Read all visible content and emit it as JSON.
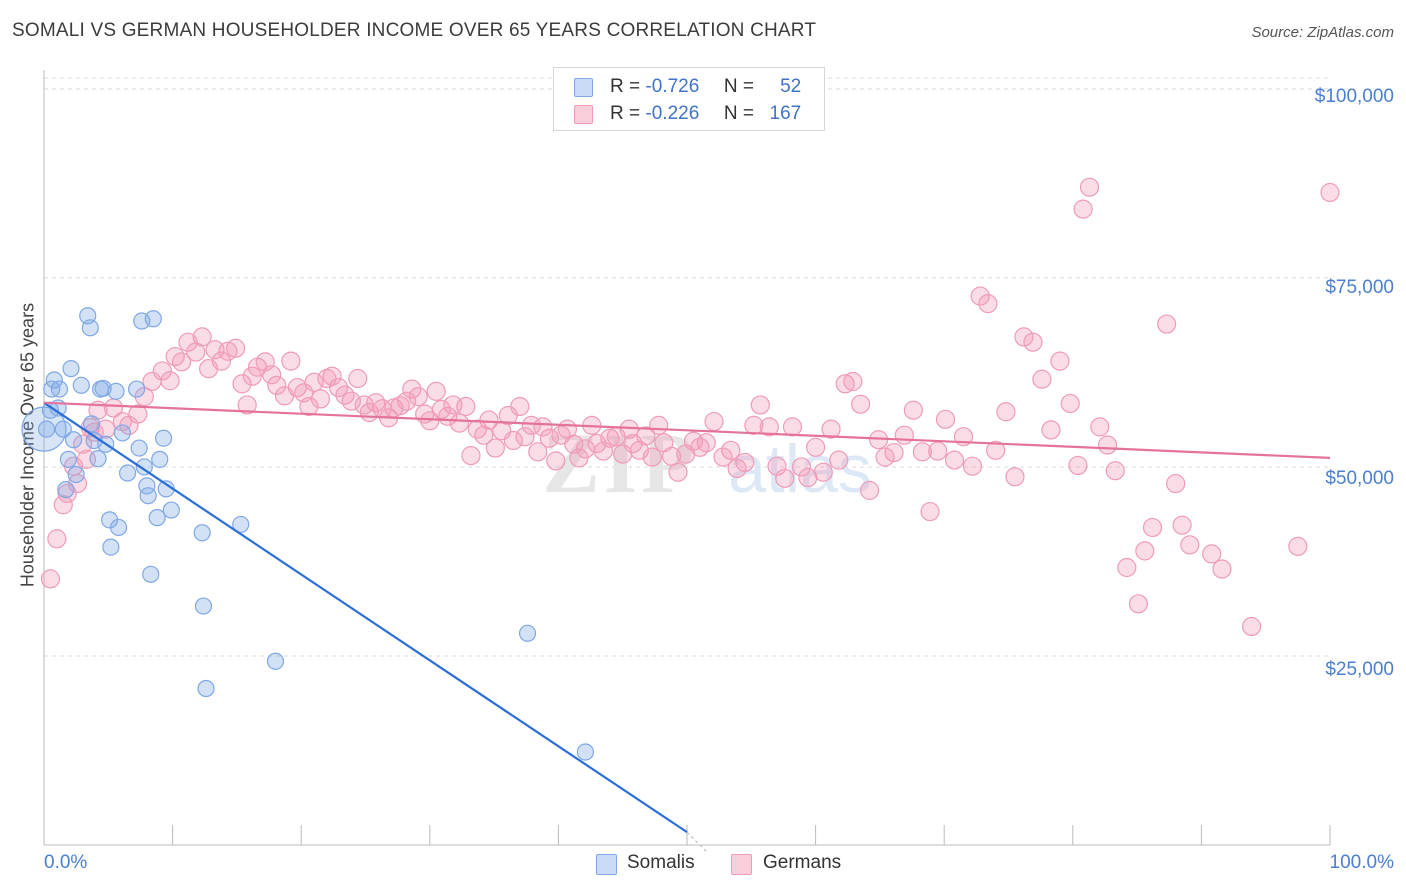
{
  "title": "SOMALI VS GERMAN HOUSEHOLDER INCOME OVER 65 YEARS CORRELATION CHART",
  "source": "Source: ZipAtlas.com",
  "watermark": "ZIPatlas",
  "colors": {
    "somali": "#7fa8e6",
    "somali_line": "#2a6fd6",
    "german": "#f09bb7",
    "german_line": "#e4729a",
    "tick_text": "#4a7fd0",
    "grid": "#d8d8d8"
  },
  "legend": {
    "r_label": "R =",
    "n_label": "N =",
    "somali": {
      "r": "-0.726",
      "n": "52"
    },
    "german": {
      "r": "-0.226",
      "n": "167"
    }
  },
  "bottom_legend": {
    "somali": "Somalis",
    "german": "Germans"
  },
  "chart_data": {
    "type": "scatter",
    "title": "SOMALI VS GERMAN HOUSEHOLDER INCOME OVER 65 YEARS CORRELATION CHART",
    "xlabel": "",
    "ylabel": "Householder Income Over 65 years",
    "xlim": [
      0,
      100
    ],
    "ylim": [
      0,
      102500
    ],
    "x_tick_labels": [
      "0.0%",
      "100.0%"
    ],
    "y_ticks": [
      25000,
      50000,
      75000,
      100000
    ],
    "y_tick_labels": [
      "$25,000",
      "$50,000",
      "$75,000",
      "$100,000"
    ],
    "grid": true,
    "series": [
      {
        "name": "Somalis",
        "trend": {
          "x0": 0,
          "y0": 58500,
          "x1": 50,
          "y1": 1700
        },
        "points": [
          [
            0.2,
            55000
          ],
          [
            0.5,
            57500
          ],
          [
            0.6,
            60300
          ],
          [
            0.8,
            61500
          ],
          [
            1.1,
            57800
          ],
          [
            1.2,
            60300
          ],
          [
            1.5,
            55000
          ],
          [
            1.7,
            47000
          ],
          [
            1.9,
            51000
          ],
          [
            2.1,
            63000
          ],
          [
            2.3,
            53600
          ],
          [
            2.5,
            49000
          ],
          [
            2.9,
            60800
          ],
          [
            3.4,
            70000
          ],
          [
            3.6,
            68400
          ],
          [
            3.7,
            55700
          ],
          [
            3.9,
            53500
          ],
          [
            4.2,
            51100
          ],
          [
            4.4,
            60300
          ],
          [
            4.6,
            60400
          ],
          [
            4.8,
            53000
          ],
          [
            5.1,
            43000
          ],
          [
            5.2,
            39400
          ],
          [
            5.6,
            60000
          ],
          [
            5.8,
            42000
          ],
          [
            6.1,
            54500
          ],
          [
            6.5,
            49200
          ],
          [
            7.2,
            60300
          ],
          [
            7.4,
            52500
          ],
          [
            7.6,
            69300
          ],
          [
            7.8,
            50000
          ],
          [
            8.0,
            47500
          ],
          [
            8.1,
            46200
          ],
          [
            8.3,
            35800
          ],
          [
            8.5,
            69600
          ],
          [
            8.8,
            43300
          ],
          [
            9.0,
            51000
          ],
          [
            9.3,
            53800
          ],
          [
            9.5,
            47100
          ],
          [
            9.9,
            44300
          ],
          [
            12.3,
            41300
          ],
          [
            12.4,
            31600
          ],
          [
            12.6,
            20700
          ],
          [
            15.3,
            42400
          ],
          [
            18.0,
            24300
          ],
          [
            37.6,
            28000
          ],
          [
            42.1,
            12300
          ]
        ]
      },
      {
        "name": "Germans",
        "trend": {
          "x0": 0,
          "y0": 58500,
          "x1": 100,
          "y1": 51200
        },
        "points": [
          [
            0.5,
            35200
          ],
          [
            1.0,
            40500
          ],
          [
            1.5,
            45000
          ],
          [
            1.8,
            46500
          ],
          [
            2.3,
            50100
          ],
          [
            2.6,
            47800
          ],
          [
            3.0,
            53000
          ],
          [
            3.3,
            51000
          ],
          [
            3.6,
            55200
          ],
          [
            3.9,
            54600
          ],
          [
            4.2,
            57500
          ],
          [
            4.8,
            55000
          ],
          [
            5.4,
            57800
          ],
          [
            6.1,
            56000
          ],
          [
            6.6,
            55500
          ],
          [
            7.3,
            57000
          ],
          [
            7.8,
            59300
          ],
          [
            8.4,
            61300
          ],
          [
            9.2,
            62700
          ],
          [
            9.8,
            61400
          ],
          [
            10.2,
            64600
          ],
          [
            10.7,
            63900
          ],
          [
            11.2,
            66500
          ],
          [
            11.8,
            65200
          ],
          [
            12.3,
            67200
          ],
          [
            12.8,
            63000
          ],
          [
            13.3,
            65500
          ],
          [
            13.8,
            64000
          ],
          [
            14.3,
            65300
          ],
          [
            14.9,
            65700
          ],
          [
            15.4,
            61000
          ],
          [
            15.8,
            58200
          ],
          [
            16.2,
            62000
          ],
          [
            16.6,
            63200
          ],
          [
            17.2,
            63900
          ],
          [
            17.7,
            62200
          ],
          [
            18.1,
            60800
          ],
          [
            18.7,
            59400
          ],
          [
            19.2,
            64000
          ],
          [
            19.7,
            60500
          ],
          [
            20.2,
            59800
          ],
          [
            20.6,
            58000
          ],
          [
            21.0,
            61200
          ],
          [
            21.5,
            59000
          ],
          [
            22.0,
            61700
          ],
          [
            22.4,
            62000
          ],
          [
            22.9,
            60500
          ],
          [
            23.4,
            59500
          ],
          [
            23.9,
            58700
          ],
          [
            24.4,
            61700
          ],
          [
            24.9,
            58200
          ],
          [
            25.3,
            57200
          ],
          [
            25.8,
            58500
          ],
          [
            26.3,
            57700
          ],
          [
            26.8,
            56500
          ],
          [
            27.2,
            57800
          ],
          [
            27.7,
            58100
          ],
          [
            28.2,
            58700
          ],
          [
            28.6,
            60300
          ],
          [
            29.1,
            59300
          ],
          [
            29.6,
            57000
          ],
          [
            30.0,
            56100
          ],
          [
            30.5,
            60000
          ],
          [
            30.9,
            57600
          ],
          [
            31.4,
            56700
          ],
          [
            31.8,
            58200
          ],
          [
            32.3,
            55800
          ],
          [
            32.8,
            58000
          ],
          [
            33.2,
            51500
          ],
          [
            33.7,
            55000
          ],
          [
            34.2,
            54200
          ],
          [
            34.6,
            56200
          ],
          [
            35.1,
            52500
          ],
          [
            35.6,
            54800
          ],
          [
            36.1,
            56800
          ],
          [
            36.5,
            53500
          ],
          [
            37.0,
            58000
          ],
          [
            37.4,
            54000
          ],
          [
            37.9,
            55500
          ],
          [
            38.4,
            52000
          ],
          [
            38.8,
            55300
          ],
          [
            39.3,
            53800
          ],
          [
            39.8,
            50800
          ],
          [
            40.2,
            54200
          ],
          [
            40.7,
            55000
          ],
          [
            41.2,
            53000
          ],
          [
            41.6,
            51200
          ],
          [
            42.1,
            52400
          ],
          [
            42.6,
            55500
          ],
          [
            43.0,
            53100
          ],
          [
            43.5,
            52100
          ],
          [
            44.0,
            53800
          ],
          [
            44.5,
            54000
          ],
          [
            45.0,
            51700
          ],
          [
            45.5,
            55000
          ],
          [
            45.8,
            53100
          ],
          [
            46.3,
            52200
          ],
          [
            46.8,
            54100
          ],
          [
            47.3,
            51300
          ],
          [
            47.8,
            55500
          ],
          [
            48.2,
            53200
          ],
          [
            48.8,
            51400
          ],
          [
            49.3,
            49300
          ],
          [
            49.9,
            51700
          ],
          [
            50.5,
            53400
          ],
          [
            51.0,
            52600
          ],
          [
            51.5,
            53200
          ],
          [
            52.1,
            56000
          ],
          [
            52.8,
            51300
          ],
          [
            53.4,
            52200
          ],
          [
            53.9,
            49800
          ],
          [
            54.5,
            50600
          ],
          [
            55.2,
            55500
          ],
          [
            55.7,
            58200
          ],
          [
            56.4,
            55300
          ],
          [
            57.0,
            50100
          ],
          [
            57.6,
            48500
          ],
          [
            58.2,
            55300
          ],
          [
            58.9,
            50000
          ],
          [
            59.4,
            48600
          ],
          [
            60.0,
            52600
          ],
          [
            60.6,
            49300
          ],
          [
            61.2,
            55000
          ],
          [
            61.8,
            50900
          ],
          [
            62.3,
            61000
          ],
          [
            62.9,
            61300
          ],
          [
            63.5,
            58300
          ],
          [
            64.2,
            46900
          ],
          [
            64.9,
            53600
          ],
          [
            65.4,
            51300
          ],
          [
            66.1,
            51900
          ],
          [
            66.9,
            54200
          ],
          [
            67.6,
            57500
          ],
          [
            68.3,
            52000
          ],
          [
            68.9,
            44100
          ],
          [
            69.5,
            52100
          ],
          [
            70.1,
            56300
          ],
          [
            70.8,
            50900
          ],
          [
            71.5,
            54000
          ],
          [
            72.2,
            50100
          ],
          [
            72.8,
            72600
          ],
          [
            73.4,
            71600
          ],
          [
            74.0,
            52200
          ],
          [
            74.8,
            57300
          ],
          [
            75.5,
            48700
          ],
          [
            76.2,
            67200
          ],
          [
            76.9,
            66500
          ],
          [
            77.6,
            61600
          ],
          [
            78.3,
            54900
          ],
          [
            79.0,
            64000
          ],
          [
            79.8,
            58400
          ],
          [
            80.4,
            50200
          ],
          [
            80.8,
            84100
          ],
          [
            81.3,
            87000
          ],
          [
            82.1,
            55300
          ],
          [
            82.7,
            52900
          ],
          [
            83.3,
            49500
          ],
          [
            84.2,
            36700
          ],
          [
            85.1,
            31900
          ],
          [
            85.6,
            38900
          ],
          [
            86.2,
            42000
          ],
          [
            87.3,
            68900
          ],
          [
            88.0,
            47800
          ],
          [
            88.5,
            42300
          ],
          [
            89.1,
            39700
          ],
          [
            90.8,
            38500
          ],
          [
            91.6,
            36500
          ],
          [
            93.9,
            28900
          ],
          [
            97.5,
            39500
          ],
          [
            100.0,
            86300
          ]
        ]
      }
    ]
  }
}
